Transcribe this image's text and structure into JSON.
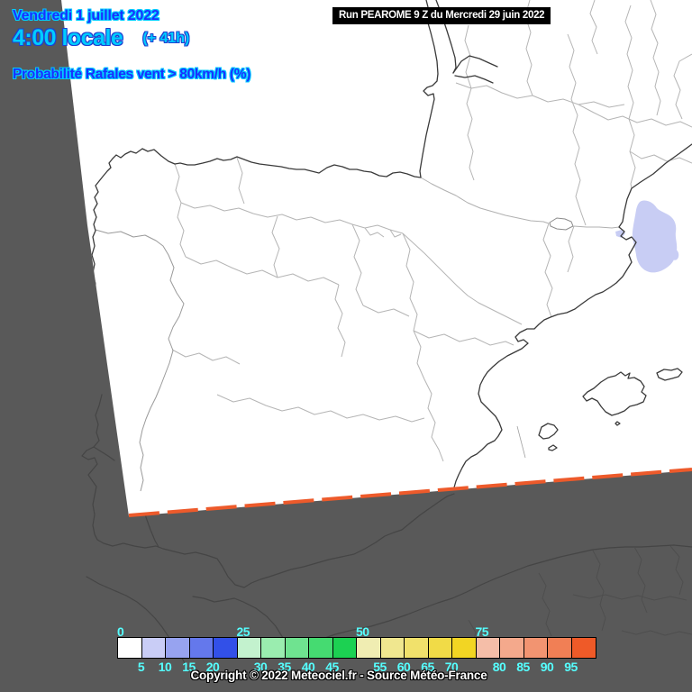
{
  "header": {
    "date": "Vendredi 1 juillet 2022",
    "time": "4:00 locale",
    "lead": "(+ 41h)",
    "parameter": "Probabilité Rafales vent > 80km/h (%)"
  },
  "run_box": {
    "text": "Run PEAROME 9 Z du Mercredi 29 juin 2022"
  },
  "legend": {
    "unit": "%",
    "cells": [
      {
        "from": 0,
        "color": "#ffffff"
      },
      {
        "from": 5,
        "color": "#c9cdf6"
      },
      {
        "from": 10,
        "color": "#97a3f0"
      },
      {
        "from": 15,
        "color": "#6478ec"
      },
      {
        "from": 20,
        "color": "#3250e8"
      },
      {
        "from": 25,
        "color": "#c3f2ce"
      },
      {
        "from": 30,
        "color": "#9aedaf"
      },
      {
        "from": 35,
        "color": "#6fe390"
      },
      {
        "from": 40,
        "color": "#45db71"
      },
      {
        "from": 45,
        "color": "#1cd152"
      },
      {
        "from": 50,
        "color": "#f0edb2"
      },
      {
        "from": 55,
        "color": "#f0e78f"
      },
      {
        "from": 60,
        "color": "#f1e16b"
      },
      {
        "from": 65,
        "color": "#f1db47"
      },
      {
        "from": 70,
        "color": "#f2d523"
      },
      {
        "from": 75,
        "color": "#f5bea8"
      },
      {
        "from": 80,
        "color": "#f4a98c"
      },
      {
        "from": 85,
        "color": "#f29471"
      },
      {
        "from": 90,
        "color": "#f17f55"
      },
      {
        "from": 95,
        "color": "#ef5a28"
      }
    ],
    "top_labels": [
      0,
      25,
      50,
      75
    ],
    "bottom_labels": [
      5,
      10,
      15,
      20,
      30,
      35,
      40,
      45,
      55,
      60,
      65,
      70,
      80,
      85,
      90,
      95
    ]
  },
  "footer": {
    "copyright": "Copyright © 2022 Meteociel.fr - Source Météo-France"
  },
  "map": {
    "shaded_region_probability": "5-10",
    "domain_edge_band_probability": "95-100"
  },
  "colors": {
    "background": "#595959",
    "domain_fill": "#ffffff",
    "date_text_blue": "#1a30ff",
    "time_text_cyan": "#00ccff",
    "outline_dark_blue": "#1e3fd0",
    "legend_tick_cyan": "#55ffff",
    "shaded_region_fill": "#c8cdf4",
    "domain_edge_band": "#ed5a2b"
  }
}
